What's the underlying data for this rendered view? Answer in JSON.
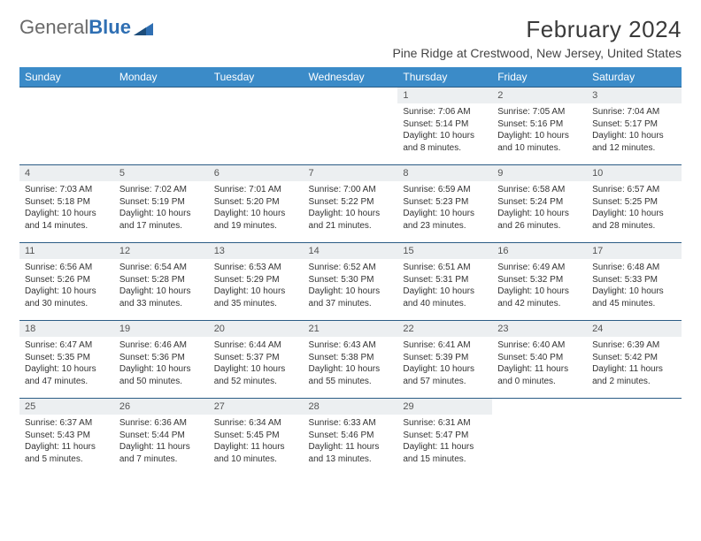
{
  "brand": {
    "part1": "General",
    "part2": "Blue"
  },
  "title": "February 2024",
  "location": "Pine Ridge at Crestwood, New Jersey, United States",
  "colors": {
    "header_bg": "#3b8bc8",
    "header_text": "#ffffff",
    "row_border": "#2b5c85",
    "daynum_bg": "#eceff1",
    "brand_gray": "#6a6a6a",
    "brand_blue": "#2f6fb3"
  },
  "dayHeaders": [
    "Sunday",
    "Monday",
    "Tuesday",
    "Wednesday",
    "Thursday",
    "Friday",
    "Saturday"
  ],
  "weeks": [
    [
      {
        "empty": true
      },
      {
        "empty": true
      },
      {
        "empty": true
      },
      {
        "empty": true
      },
      {
        "n": "1",
        "sr": "7:06 AM",
        "ss": "5:14 PM",
        "dl": "10 hours and 8 minutes."
      },
      {
        "n": "2",
        "sr": "7:05 AM",
        "ss": "5:16 PM",
        "dl": "10 hours and 10 minutes."
      },
      {
        "n": "3",
        "sr": "7:04 AM",
        "ss": "5:17 PM",
        "dl": "10 hours and 12 minutes."
      }
    ],
    [
      {
        "n": "4",
        "sr": "7:03 AM",
        "ss": "5:18 PM",
        "dl": "10 hours and 14 minutes."
      },
      {
        "n": "5",
        "sr": "7:02 AM",
        "ss": "5:19 PM",
        "dl": "10 hours and 17 minutes."
      },
      {
        "n": "6",
        "sr": "7:01 AM",
        "ss": "5:20 PM",
        "dl": "10 hours and 19 minutes."
      },
      {
        "n": "7",
        "sr": "7:00 AM",
        "ss": "5:22 PM",
        "dl": "10 hours and 21 minutes."
      },
      {
        "n": "8",
        "sr": "6:59 AM",
        "ss": "5:23 PM",
        "dl": "10 hours and 23 minutes."
      },
      {
        "n": "9",
        "sr": "6:58 AM",
        "ss": "5:24 PM",
        "dl": "10 hours and 26 minutes."
      },
      {
        "n": "10",
        "sr": "6:57 AM",
        "ss": "5:25 PM",
        "dl": "10 hours and 28 minutes."
      }
    ],
    [
      {
        "n": "11",
        "sr": "6:56 AM",
        "ss": "5:26 PM",
        "dl": "10 hours and 30 minutes."
      },
      {
        "n": "12",
        "sr": "6:54 AM",
        "ss": "5:28 PM",
        "dl": "10 hours and 33 minutes."
      },
      {
        "n": "13",
        "sr": "6:53 AM",
        "ss": "5:29 PM",
        "dl": "10 hours and 35 minutes."
      },
      {
        "n": "14",
        "sr": "6:52 AM",
        "ss": "5:30 PM",
        "dl": "10 hours and 37 minutes."
      },
      {
        "n": "15",
        "sr": "6:51 AM",
        "ss": "5:31 PM",
        "dl": "10 hours and 40 minutes."
      },
      {
        "n": "16",
        "sr": "6:49 AM",
        "ss": "5:32 PM",
        "dl": "10 hours and 42 minutes."
      },
      {
        "n": "17",
        "sr": "6:48 AM",
        "ss": "5:33 PM",
        "dl": "10 hours and 45 minutes."
      }
    ],
    [
      {
        "n": "18",
        "sr": "6:47 AM",
        "ss": "5:35 PM",
        "dl": "10 hours and 47 minutes."
      },
      {
        "n": "19",
        "sr": "6:46 AM",
        "ss": "5:36 PM",
        "dl": "10 hours and 50 minutes."
      },
      {
        "n": "20",
        "sr": "6:44 AM",
        "ss": "5:37 PM",
        "dl": "10 hours and 52 minutes."
      },
      {
        "n": "21",
        "sr": "6:43 AM",
        "ss": "5:38 PM",
        "dl": "10 hours and 55 minutes."
      },
      {
        "n": "22",
        "sr": "6:41 AM",
        "ss": "5:39 PM",
        "dl": "10 hours and 57 minutes."
      },
      {
        "n": "23",
        "sr": "6:40 AM",
        "ss": "5:40 PM",
        "dl": "11 hours and 0 minutes."
      },
      {
        "n": "24",
        "sr": "6:39 AM",
        "ss": "5:42 PM",
        "dl": "11 hours and 2 minutes."
      }
    ],
    [
      {
        "n": "25",
        "sr": "6:37 AM",
        "ss": "5:43 PM",
        "dl": "11 hours and 5 minutes."
      },
      {
        "n": "26",
        "sr": "6:36 AM",
        "ss": "5:44 PM",
        "dl": "11 hours and 7 minutes."
      },
      {
        "n": "27",
        "sr": "6:34 AM",
        "ss": "5:45 PM",
        "dl": "11 hours and 10 minutes."
      },
      {
        "n": "28",
        "sr": "6:33 AM",
        "ss": "5:46 PM",
        "dl": "11 hours and 13 minutes."
      },
      {
        "n": "29",
        "sr": "6:31 AM",
        "ss": "5:47 PM",
        "dl": "11 hours and 15 minutes."
      },
      {
        "empty": true
      },
      {
        "empty": true
      }
    ]
  ]
}
